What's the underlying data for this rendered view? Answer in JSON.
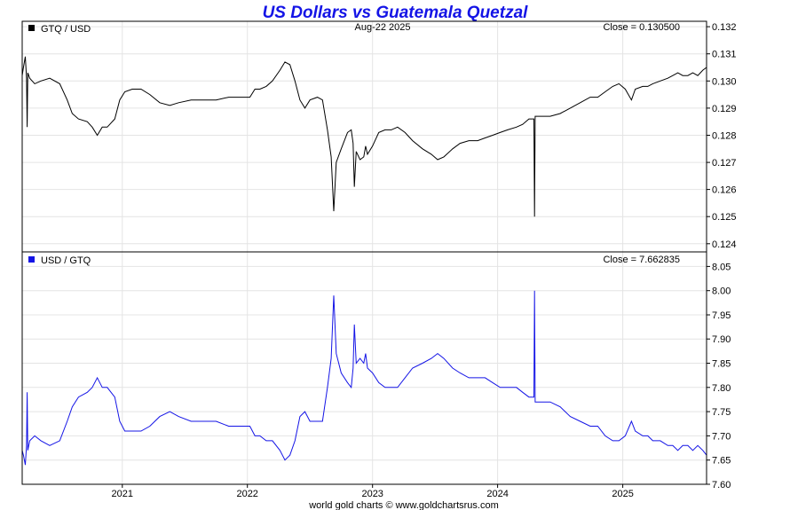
{
  "title": "US Dollars vs Guatemala Quetzal",
  "date_label": "Aug-22  2025",
  "credit": "world gold charts © www.goldchartsrus.com",
  "colors": {
    "title": "#1414e6",
    "top_series": "#000000",
    "bottom_series": "#1414e6",
    "grid": "#e4e4e4"
  },
  "x_tick_labels": [
    "2021",
    "2022",
    "2023",
    "2024",
    "2025"
  ],
  "chart_data": [
    {
      "type": "line",
      "legend": "GTQ / USD",
      "close_label": "Close = 0.130500",
      "ylim": [
        0.1237,
        0.1322
      ],
      "yticks": [
        0.124,
        0.125,
        0.126,
        0.127,
        0.128,
        0.129,
        0.13,
        0.131,
        0.132
      ],
      "ytick_labels": [
        "0.124",
        "0.125",
        "0.126",
        "0.127",
        "0.128",
        "0.129",
        "0.130",
        "0.131",
        "0.132"
      ],
      "x_range": [
        2020.2,
        2025.67
      ],
      "grid": true,
      "series": [
        {
          "color": "#000000",
          "points": [
            [
              2020.2,
              0.1302
            ],
            [
              2020.21,
              0.1305
            ],
            [
              2020.225,
              0.1309
            ],
            [
              2020.235,
              0.1301
            ],
            [
              2020.24,
              0.1283
            ],
            [
              2020.245,
              0.1303
            ],
            [
              2020.26,
              0.1301
            ],
            [
              2020.3,
              0.1299
            ],
            [
              2020.35,
              0.13
            ],
            [
              2020.42,
              0.1301
            ],
            [
              2020.5,
              0.1299
            ],
            [
              2020.56,
              0.1293
            ],
            [
              2020.6,
              0.1288
            ],
            [
              2020.65,
              0.1286
            ],
            [
              2020.72,
              0.1285
            ],
            [
              2020.76,
              0.1283
            ],
            [
              2020.8,
              0.128
            ],
            [
              2020.84,
              0.1283
            ],
            [
              2020.88,
              0.1283
            ],
            [
              2020.94,
              0.1286
            ],
            [
              2020.98,
              0.1293
            ],
            [
              2021.02,
              0.1296
            ],
            [
              2021.08,
              0.1297
            ],
            [
              2021.15,
              0.1297
            ],
            [
              2021.22,
              0.1295
            ],
            [
              2021.3,
              0.1292
            ],
            [
              2021.38,
              0.1291
            ],
            [
              2021.45,
              0.1292
            ],
            [
              2021.55,
              0.1293
            ],
            [
              2021.65,
              0.1293
            ],
            [
              2021.75,
              0.1293
            ],
            [
              2021.85,
              0.1294
            ],
            [
              2021.95,
              0.1294
            ],
            [
              2022.02,
              0.1294
            ],
            [
              2022.06,
              0.1297
            ],
            [
              2022.1,
              0.1297
            ],
            [
              2022.15,
              0.1298
            ],
            [
              2022.2,
              0.13
            ],
            [
              2022.26,
              0.1304
            ],
            [
              2022.3,
              0.1307
            ],
            [
              2022.34,
              0.1306
            ],
            [
              2022.38,
              0.13
            ],
            [
              2022.42,
              0.1293
            ],
            [
              2022.46,
              0.129
            ],
            [
              2022.5,
              0.1293
            ],
            [
              2022.56,
              0.1294
            ],
            [
              2022.6,
              0.1293
            ],
            [
              2022.64,
              0.1282
            ],
            [
              2022.67,
              0.1272
            ],
            [
              2022.69,
              0.1252
            ],
            [
              2022.71,
              0.127
            ],
            [
              2022.75,
              0.1275
            ],
            [
              2022.8,
              0.1281
            ],
            [
              2022.83,
              0.1282
            ],
            [
              2022.845,
              0.1277
            ],
            [
              2022.855,
              0.1261
            ],
            [
              2022.87,
              0.1274
            ],
            [
              2022.9,
              0.1271
            ],
            [
              2022.93,
              0.1272
            ],
            [
              2022.945,
              0.1276
            ],
            [
              2022.96,
              0.1273
            ],
            [
              2023.0,
              0.1276
            ],
            [
              2023.05,
              0.1281
            ],
            [
              2023.1,
              0.1282
            ],
            [
              2023.15,
              0.1282
            ],
            [
              2023.2,
              0.1283
            ],
            [
              2023.26,
              0.1281
            ],
            [
              2023.32,
              0.1278
            ],
            [
              2023.4,
              0.1275
            ],
            [
              2023.47,
              0.1273
            ],
            [
              2023.52,
              0.1271
            ],
            [
              2023.57,
              0.1272
            ],
            [
              2023.64,
              0.1275
            ],
            [
              2023.7,
              0.1277
            ],
            [
              2023.77,
              0.1278
            ],
            [
              2023.84,
              0.1278
            ],
            [
              2023.9,
              0.1279
            ],
            [
              2023.96,
              0.128
            ],
            [
              2024.02,
              0.1281
            ],
            [
              2024.08,
              0.1282
            ],
            [
              2024.15,
              0.1283
            ],
            [
              2024.2,
              0.1284
            ],
            [
              2024.25,
              0.1286
            ],
            [
              2024.29,
              0.1286
            ],
            [
              2024.295,
              0.125
            ],
            [
              2024.3,
              0.1287
            ],
            [
              2024.35,
              0.1287
            ],
            [
              2024.42,
              0.1287
            ],
            [
              2024.5,
              0.1288
            ],
            [
              2024.58,
              0.129
            ],
            [
              2024.66,
              0.1292
            ],
            [
              2024.74,
              0.1294
            ],
            [
              2024.8,
              0.1294
            ],
            [
              2024.86,
              0.1296
            ],
            [
              2024.92,
              0.1298
            ],
            [
              2024.97,
              0.1299
            ],
            [
              2025.02,
              0.1297
            ],
            [
              2025.07,
              0.1293
            ],
            [
              2025.1,
              0.1297
            ],
            [
              2025.16,
              0.1298
            ],
            [
              2025.2,
              0.1298
            ],
            [
              2025.24,
              0.1299
            ],
            [
              2025.3,
              0.13
            ],
            [
              2025.36,
              0.1301
            ],
            [
              2025.4,
              0.1302
            ],
            [
              2025.44,
              0.1303
            ],
            [
              2025.48,
              0.1302
            ],
            [
              2025.52,
              0.1302
            ],
            [
              2025.56,
              0.1303
            ],
            [
              2025.6,
              0.1302
            ],
            [
              2025.64,
              0.1304
            ],
            [
              2025.67,
              0.1305
            ]
          ]
        }
      ]
    },
    {
      "type": "line",
      "legend": "USD / GTQ",
      "close_label": "Close = 7.662835",
      "ylim": [
        7.6,
        8.08
      ],
      "yticks": [
        7.6,
        7.65,
        7.7,
        7.75,
        7.8,
        7.85,
        7.9,
        7.95,
        8.0,
        8.05
      ],
      "ytick_labels": [
        "7.60",
        "7.65",
        "7.70",
        "7.75",
        "7.80",
        "7.85",
        "7.90",
        "7.95",
        "8.00",
        "8.05"
      ],
      "x_range": [
        2020.2,
        2025.67
      ],
      "grid": true,
      "series": [
        {
          "color": "#1414e6",
          "points": [
            [
              2020.2,
              7.67
            ],
            [
              2020.21,
              7.66
            ],
            [
              2020.225,
              7.64
            ],
            [
              2020.235,
              7.68
            ],
            [
              2020.24,
              7.79
            ],
            [
              2020.245,
              7.67
            ],
            [
              2020.26,
              7.69
            ],
            [
              2020.3,
              7.7
            ],
            [
              2020.35,
              7.69
            ],
            [
              2020.42,
              7.68
            ],
            [
              2020.5,
              7.69
            ],
            [
              2020.56,
              7.73
            ],
            [
              2020.6,
              7.76
            ],
            [
              2020.65,
              7.78
            ],
            [
              2020.72,
              7.79
            ],
            [
              2020.76,
              7.8
            ],
            [
              2020.8,
              7.82
            ],
            [
              2020.84,
              7.8
            ],
            [
              2020.88,
              7.8
            ],
            [
              2020.94,
              7.78
            ],
            [
              2020.98,
              7.73
            ],
            [
              2021.02,
              7.71
            ],
            [
              2021.08,
              7.71
            ],
            [
              2021.15,
              7.71
            ],
            [
              2021.22,
              7.72
            ],
            [
              2021.3,
              7.74
            ],
            [
              2021.38,
              7.75
            ],
            [
              2021.45,
              7.74
            ],
            [
              2021.55,
              7.73
            ],
            [
              2021.65,
              7.73
            ],
            [
              2021.75,
              7.73
            ],
            [
              2021.85,
              7.72
            ],
            [
              2021.95,
              7.72
            ],
            [
              2022.02,
              7.72
            ],
            [
              2022.06,
              7.7
            ],
            [
              2022.1,
              7.7
            ],
            [
              2022.15,
              7.69
            ],
            [
              2022.2,
              7.69
            ],
            [
              2022.26,
              7.67
            ],
            [
              2022.3,
              7.65
            ],
            [
              2022.34,
              7.66
            ],
            [
              2022.38,
              7.69
            ],
            [
              2022.42,
              7.74
            ],
            [
              2022.46,
              7.75
            ],
            [
              2022.5,
              7.73
            ],
            [
              2022.56,
              7.73
            ],
            [
              2022.6,
              7.73
            ],
            [
              2022.64,
              7.8
            ],
            [
              2022.67,
              7.86
            ],
            [
              2022.69,
              7.99
            ],
            [
              2022.71,
              7.87
            ],
            [
              2022.75,
              7.83
            ],
            [
              2022.8,
              7.81
            ],
            [
              2022.83,
              7.8
            ],
            [
              2022.845,
              7.84
            ],
            [
              2022.855,
              7.93
            ],
            [
              2022.87,
              7.85
            ],
            [
              2022.9,
              7.86
            ],
            [
              2022.93,
              7.85
            ],
            [
              2022.945,
              7.87
            ],
            [
              2022.96,
              7.84
            ],
            [
              2023.0,
              7.83
            ],
            [
              2023.05,
              7.81
            ],
            [
              2023.1,
              7.8
            ],
            [
              2023.15,
              7.8
            ],
            [
              2023.2,
              7.8
            ],
            [
              2023.26,
              7.82
            ],
            [
              2023.32,
              7.84
            ],
            [
              2023.4,
              7.85
            ],
            [
              2023.47,
              7.86
            ],
            [
              2023.52,
              7.87
            ],
            [
              2023.57,
              7.86
            ],
            [
              2023.64,
              7.84
            ],
            [
              2023.7,
              7.83
            ],
            [
              2023.77,
              7.82
            ],
            [
              2023.84,
              7.82
            ],
            [
              2023.9,
              7.82
            ],
            [
              2023.96,
              7.81
            ],
            [
              2024.02,
              7.8
            ],
            [
              2024.08,
              7.8
            ],
            [
              2024.15,
              7.8
            ],
            [
              2024.2,
              7.79
            ],
            [
              2024.25,
              7.78
            ],
            [
              2024.29,
              7.78
            ],
            [
              2024.295,
              8.0
            ],
            [
              2024.3,
              7.77
            ],
            [
              2024.35,
              7.77
            ],
            [
              2024.42,
              7.77
            ],
            [
              2024.5,
              7.76
            ],
            [
              2024.58,
              7.74
            ],
            [
              2024.66,
              7.73
            ],
            [
              2024.74,
              7.72
            ],
            [
              2024.8,
              7.72
            ],
            [
              2024.86,
              7.7
            ],
            [
              2024.92,
              7.69
            ],
            [
              2024.97,
              7.69
            ],
            [
              2025.02,
              7.7
            ],
            [
              2025.07,
              7.73
            ],
            [
              2025.1,
              7.71
            ],
            [
              2025.16,
              7.7
            ],
            [
              2025.2,
              7.7
            ],
            [
              2025.24,
              7.69
            ],
            [
              2025.3,
              7.69
            ],
            [
              2025.36,
              7.68
            ],
            [
              2025.4,
              7.68
            ],
            [
              2025.44,
              7.67
            ],
            [
              2025.48,
              7.68
            ],
            [
              2025.52,
              7.68
            ],
            [
              2025.56,
              7.67
            ],
            [
              2025.6,
              7.68
            ],
            [
              2025.64,
              7.67
            ],
            [
              2025.67,
              7.66
            ]
          ]
        }
      ]
    }
  ]
}
